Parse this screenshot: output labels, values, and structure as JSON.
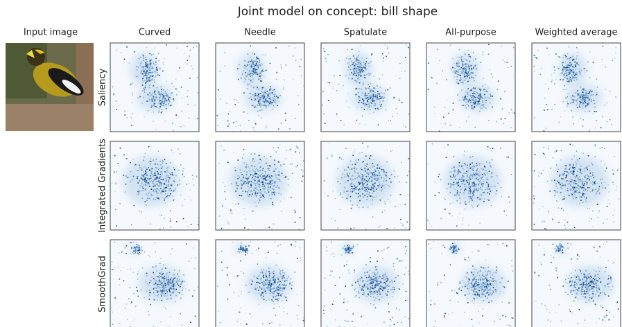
{
  "title": "Joint model on concept: bill shape",
  "input_label": "Input image",
  "columns": [
    "Curved",
    "Needle",
    "Spatulate",
    "All-purpose",
    "Weighted average"
  ],
  "rows": [
    "Saliency",
    "Integrated Gradients",
    "SmoothGrad"
  ]
}
